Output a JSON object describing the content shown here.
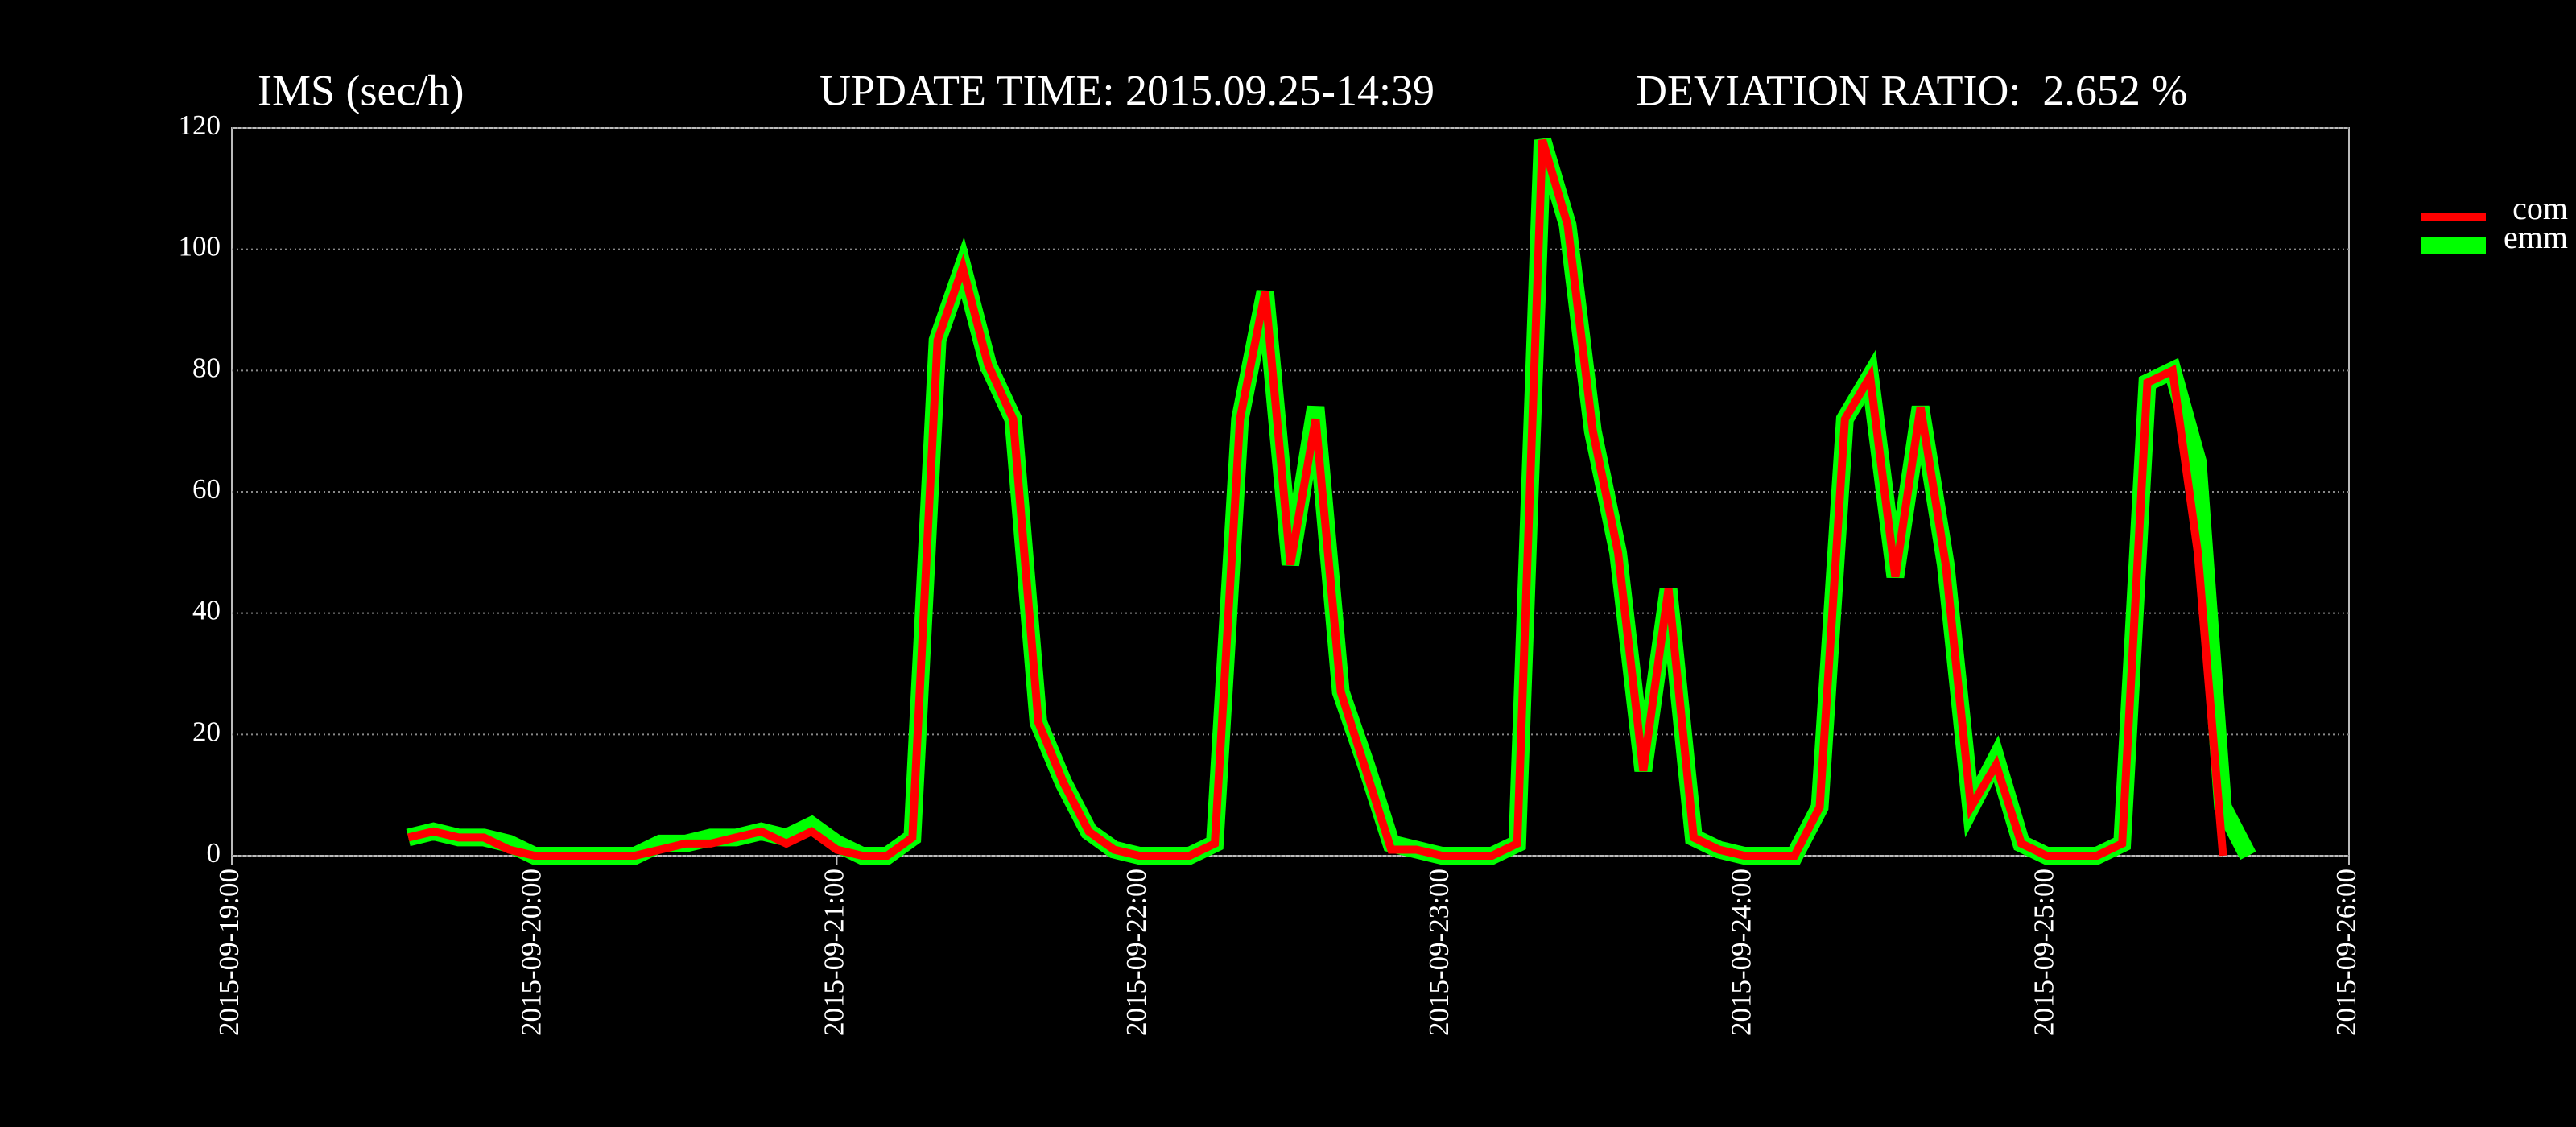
{
  "chart_data": {
    "type": "line",
    "title": "IMS (sec/h)",
    "update_time": "UPDATE TIME: 2015.09.25-14:39",
    "deviation_ratio": "DEVIATION RATIO:  2.652 %",
    "x": [
      "2015-09-19T14:00",
      "2015-09-19T16:00",
      "2015-09-19T18:00",
      "2015-09-19T20:00",
      "2015-09-19T22:00",
      "2015-09-20T00:00",
      "2015-09-20T02:00",
      "2015-09-20T04:00",
      "2015-09-20T06:00",
      "2015-09-20T08:00",
      "2015-09-20T10:00",
      "2015-09-20T12:00",
      "2015-09-20T14:00",
      "2015-09-20T16:00",
      "2015-09-20T18:00",
      "2015-09-20T20:00",
      "2015-09-20T22:00",
      "2015-09-21T00:00",
      "2015-09-21T02:00",
      "2015-09-21T04:00",
      "2015-09-21T06:00",
      "2015-09-21T08:00",
      "2015-09-21T10:00",
      "2015-09-21T12:00",
      "2015-09-21T14:00",
      "2015-09-21T16:00",
      "2015-09-21T18:00",
      "2015-09-21T20:00",
      "2015-09-21T22:00",
      "2015-09-22T00:00",
      "2015-09-22T02:00",
      "2015-09-22T04:00",
      "2015-09-22T06:00",
      "2015-09-22T08:00",
      "2015-09-22T10:00",
      "2015-09-22T12:00",
      "2015-09-22T14:00",
      "2015-09-22T16:00",
      "2015-09-22T18:00",
      "2015-09-22T20:00",
      "2015-09-22T22:00",
      "2015-09-23T00:00",
      "2015-09-23T02:00",
      "2015-09-23T04:00",
      "2015-09-23T06:00",
      "2015-09-23T08:00",
      "2015-09-23T10:00",
      "2015-09-23T12:00",
      "2015-09-23T14:00",
      "2015-09-23T16:00",
      "2015-09-23T18:00",
      "2015-09-23T20:00",
      "2015-09-23T22:00",
      "2015-09-24T00:00",
      "2015-09-24T02:00",
      "2015-09-24T04:00",
      "2015-09-24T06:00",
      "2015-09-24T08:00",
      "2015-09-24T10:00",
      "2015-09-24T12:00",
      "2015-09-24T14:00",
      "2015-09-24T16:00",
      "2015-09-24T18:00",
      "2015-09-24T20:00",
      "2015-09-24T22:00",
      "2015-09-25T00:00",
      "2015-09-25T02:00",
      "2015-09-25T04:00",
      "2015-09-25T06:00",
      "2015-09-25T08:00",
      "2015-09-25T10:00",
      "2015-09-25T12:00",
      "2015-09-25T14:00",
      "2015-09-25T16:00"
    ],
    "series": [
      {
        "name": "com",
        "color": "#ff0000",
        "values": [
          3,
          4,
          3,
          3,
          1,
          0,
          0,
          0,
          0,
          0,
          1,
          2,
          2,
          3,
          4,
          2,
          4,
          1,
          0,
          0,
          3,
          85,
          97,
          81,
          72,
          22,
          12,
          4,
          1,
          0,
          0,
          0,
          2,
          72,
          93,
          48,
          72,
          27,
          14,
          1,
          1,
          0,
          0,
          0,
          2,
          118,
          104,
          70,
          50,
          14,
          44,
          3,
          1,
          0,
          0,
          0,
          8,
          72,
          79,
          46,
          74,
          48,
          8,
          15,
          2,
          0,
          0,
          0,
          2,
          78,
          80,
          50,
          0,
          null
        ]
      },
      {
        "name": "emm",
        "color": "#00ff00",
        "values": [
          3,
          4,
          3,
          3,
          2,
          0,
          0,
          0,
          0,
          0,
          2,
          2,
          3,
          3,
          4,
          3,
          5,
          2,
          0,
          0,
          3,
          85,
          97,
          81,
          72,
          22,
          12,
          4,
          1,
          0,
          0,
          0,
          2,
          72,
          93,
          48,
          74,
          27,
          15,
          2,
          1,
          0,
          0,
          0,
          2,
          118,
          104,
          70,
          50,
          14,
          44,
          3,
          1,
          0,
          0,
          0,
          8,
          72,
          79,
          46,
          74,
          48,
          8,
          16,
          2,
          0,
          0,
          0,
          2,
          78,
          80,
          65,
          8,
          0
        ]
      }
    ],
    "ylim": [
      0,
      120
    ],
    "yticks": [
      0,
      20,
      40,
      60,
      80,
      100,
      120
    ],
    "xlim": [
      "2015-09-19T00:00",
      "2015-09-26T00:00"
    ],
    "xticks": [
      {
        "value": "2015-09-19T00:00",
        "label": "2015-09-19:00"
      },
      {
        "value": "2015-09-20T00:00",
        "label": "2015-09-20:00"
      },
      {
        "value": "2015-09-21T00:00",
        "label": "2015-09-21:00"
      },
      {
        "value": "2015-09-22T00:00",
        "label": "2015-09-22:00"
      },
      {
        "value": "2015-09-23T00:00",
        "label": "2015-09-23:00"
      },
      {
        "value": "2015-09-24T00:00",
        "label": "2015-09-24:00"
      },
      {
        "value": "2015-09-25T00:00",
        "label": "2015-09-25:00"
      },
      {
        "value": "2015-09-26T00:00",
        "label": "2015-09-26:00"
      }
    ],
    "grid": true,
    "legend": "right"
  }
}
